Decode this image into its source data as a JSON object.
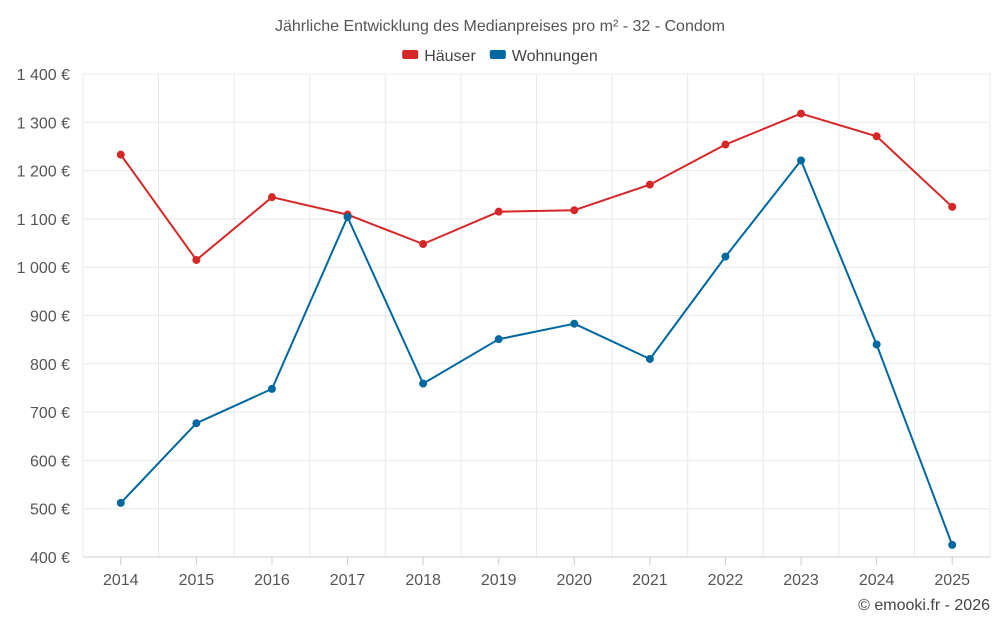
{
  "chart_data": {
    "type": "line",
    "title": "Jährliche Entwicklung des Medianpreises pro m² - 32 - Condom",
    "categories": [
      "2014",
      "2015",
      "2016",
      "2017",
      "2018",
      "2019",
      "2020",
      "2021",
      "2022",
      "2023",
      "2024",
      "2025"
    ],
    "ylim": [
      400,
      1400
    ],
    "y_ticks": [
      400,
      500,
      600,
      700,
      800,
      900,
      1000,
      1100,
      1200,
      1300,
      1400
    ],
    "y_tick_labels": [
      "400 €",
      "500 €",
      "600 €",
      "700 €",
      "800 €",
      "900 €",
      "1 000 €",
      "1 100 €",
      "1 200 €",
      "1 300 €",
      "1 400 €"
    ],
    "grid": true,
    "legend_position": "top-center",
    "series": [
      {
        "name": "Häuser",
        "color": "#d62728",
        "values": [
          1233,
          1015,
          1145,
          1109,
          1048,
          1115,
          1118,
          1171,
          1254,
          1318,
          1271,
          1125
        ]
      },
      {
        "name": "Wohnungen",
        "color": "#0068a0",
        "values": [
          512,
          677,
          748,
          1104,
          759,
          851,
          883,
          810,
          1022,
          1221,
          840,
          425
        ]
      }
    ],
    "credit": "© emooki.fr - 2026"
  }
}
